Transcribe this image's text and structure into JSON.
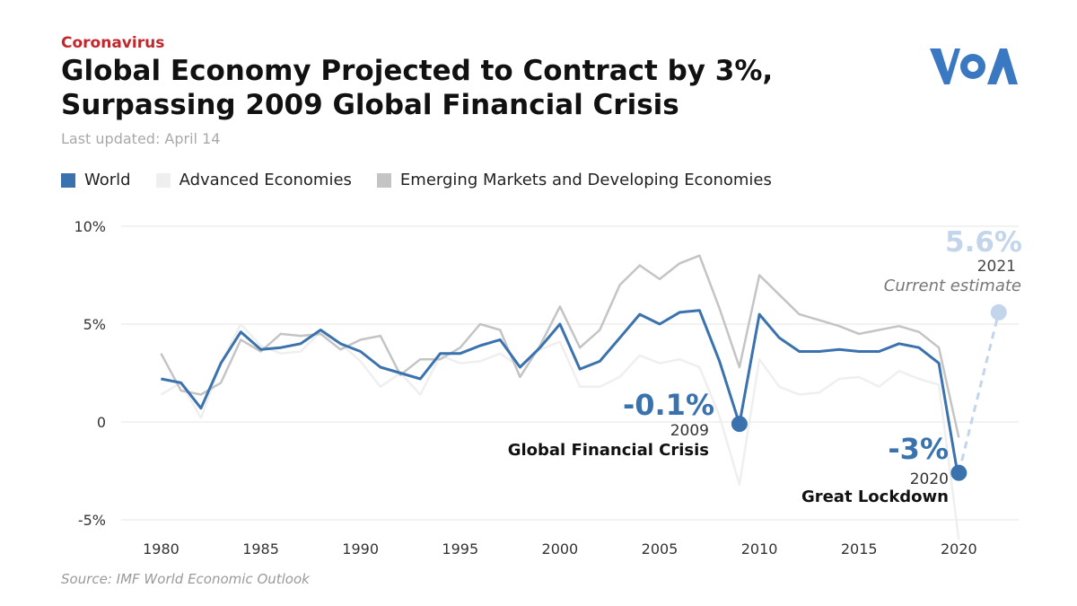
{
  "header": {
    "kicker": "Coronavirus",
    "title_line1": "Global Economy Projected to Contract by 3%,",
    "title_line2": "Surpassing 2009 Global Financial Crisis",
    "updated": "Last updated: April 14"
  },
  "logo": {
    "text": "VOA",
    "color": "#3a78c2"
  },
  "source": "Source: IMF World Economic Outlook",
  "colors": {
    "world": "#3a72ae",
    "advanced": "#efefef",
    "emerging": "#c4c4c4",
    "estimate": "#c3d5ea",
    "grid": "#e6e6e6"
  },
  "annotations": [
    {
      "value": "-0.1%",
      "year": "2009",
      "name": "Global Financial Crisis",
      "x": 2009,
      "y": -0.1
    },
    {
      "value": "-3%",
      "year": "2020",
      "name": "Great Lockdown",
      "x": 2020,
      "y": -2.6
    },
    {
      "value": "5.6%",
      "year": "2021",
      "name": "Current estimate",
      "x": 2022,
      "y": 5.6
    }
  ],
  "chart_data": {
    "type": "line",
    "x": [
      1980,
      1981,
      1982,
      1983,
      1984,
      1985,
      1986,
      1987,
      1988,
      1989,
      1990,
      1991,
      1992,
      1993,
      1994,
      1995,
      1996,
      1997,
      1998,
      1999,
      2000,
      2001,
      2002,
      2003,
      2004,
      2005,
      2006,
      2007,
      2008,
      2009,
      2010,
      2011,
      2012,
      2013,
      2014,
      2015,
      2016,
      2017,
      2018,
      2019,
      2020
    ],
    "series": [
      {
        "name": "World",
        "key": "world",
        "values": [
          2.2,
          2.0,
          0.7,
          3.0,
          4.6,
          3.7,
          3.8,
          4.0,
          4.7,
          4.0,
          3.6,
          2.8,
          2.5,
          2.2,
          3.5,
          3.5,
          3.9,
          4.2,
          2.8,
          3.8,
          5.0,
          2.7,
          3.1,
          4.3,
          5.5,
          5.0,
          5.6,
          5.7,
          3.1,
          -0.1,
          5.5,
          4.3,
          3.6,
          3.6,
          3.7,
          3.6,
          3.6,
          4.0,
          3.8,
          3.0,
          -3.0
        ]
      },
      {
        "name": "Advanced Economies",
        "key": "advanced",
        "values": [
          1.4,
          2.0,
          0.2,
          3.0,
          5.0,
          3.9,
          3.5,
          3.6,
          4.6,
          4.0,
          3.1,
          1.8,
          2.5,
          1.4,
          3.4,
          3.0,
          3.1,
          3.5,
          2.8,
          3.7,
          4.1,
          1.8,
          1.8,
          2.3,
          3.4,
          3.0,
          3.2,
          2.8,
          0.3,
          -3.2,
          3.2,
          1.8,
          1.4,
          1.5,
          2.2,
          2.3,
          1.8,
          2.6,
          2.2,
          1.9,
          -6.0
        ]
      },
      {
        "name": "Emerging Markets and Developing Economies",
        "key": "emerging",
        "values": [
          3.5,
          1.6,
          1.4,
          2.0,
          4.2,
          3.6,
          4.5,
          4.4,
          4.5,
          3.7,
          4.2,
          4.4,
          2.4,
          3.2,
          3.2,
          3.8,
          5.0,
          4.7,
          2.3,
          3.9,
          5.9,
          3.8,
          4.7,
          7.0,
          8.0,
          7.3,
          8.1,
          8.5,
          5.8,
          2.8,
          7.5,
          6.5,
          5.5,
          5.2,
          4.9,
          4.5,
          4.7,
          4.9,
          4.6,
          3.8,
          -0.8
        ]
      }
    ],
    "estimate": {
      "from_x": 2020,
      "from_y": -2.6,
      "to_x": 2022,
      "to_y": 5.6
    },
    "xticks": [
      1980,
      1985,
      1990,
      1995,
      2000,
      2005,
      2010,
      2015,
      2020
    ],
    "yticks": [
      {
        "v": 10,
        "label": "10%"
      },
      {
        "v": 5,
        "label": "5%"
      },
      {
        "v": 0,
        "label": "0"
      },
      {
        "v": -5,
        "label": "-5%"
      }
    ],
    "xlim": [
      1978,
      2023
    ],
    "ylim": [
      -5,
      10
    ],
    "legend_placement": "top-left",
    "grid": true,
    "title": "Global Economy Projected to Contract by 3%, Surpassing 2009 Global Financial Crisis",
    "xlabel": "",
    "ylabel": ""
  }
}
